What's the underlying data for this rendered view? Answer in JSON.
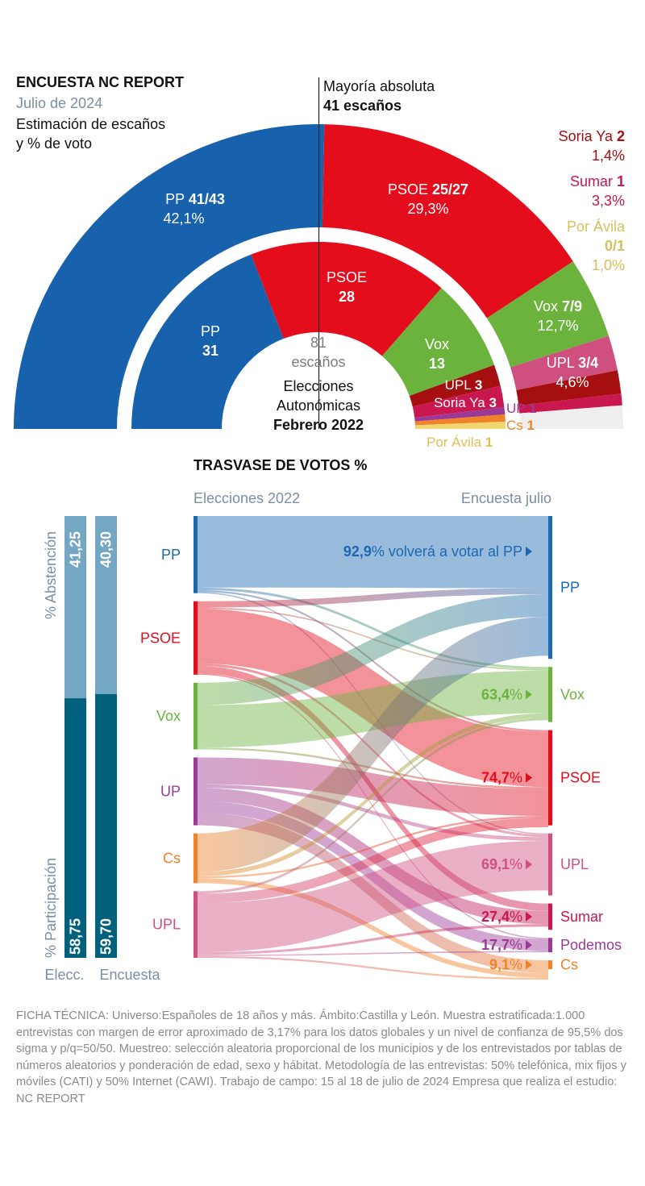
{
  "header": {
    "title": "ENCUESTA NC REPORT",
    "date": "Julio de 2024",
    "subtitle_line1": "Estimación de escaños",
    "subtitle_line2": "y % de voto"
  },
  "majority": {
    "label": "Mayoría absoluta",
    "seats": "41 escaños"
  },
  "center": {
    "total_number": "81",
    "total_label": "escaños",
    "line1": "Elecciones",
    "line2": "Autonómicas",
    "line3": "Febrero 2022"
  },
  "flow_title": "TRASVASE DE VOTOS %",
  "flow_left_header": "Elecciones 2022",
  "flow_right_header": "Encuesta julio",
  "participation": {
    "axis_top": "% Abstención",
    "axis_bottom": "% Participación",
    "elecc_label": "Elecc.",
    "encuesta_label": "Encuesta",
    "elecc_abstencion": "41,25",
    "elecc_participacion": "58,75",
    "encuesta_abstencion": "40,30",
    "encuesta_participacion": "59,70"
  },
  "ficha": "FICHA TÉCNICA: Universo:Españoles de 18 años y más. Ámbito:Castilla y León. Muestra estratificada:1.000 entrevistas con margen de error aproximado de 3,17% para los datos globales y un nivel de confianza de 95,5% dos sigma y p/q=50/50. Muestreo: selección aleatoria proporcional de los municipios y de los entrevistados por tablas de números aleatorios y ponderación de edad, sexo y hábitat. Metodología de las entrevistas: 50% telefónica, mix fijos y móviles (CATI) y 50% Internet (CAWI). Trabajo de campo: 15 al 18 de julio de 2024 Empresa que realiza el estudio: NC REPORT",
  "chart_data": [
    {
      "type": "pie",
      "subtype": "parliament-semicircle",
      "label": "Julio de 2024",
      "total_seats": 81,
      "majority_seats": 41,
      "parties": [
        {
          "name": "PP",
          "seats_text": "41/43",
          "seats_min": 41,
          "seats_max": 43,
          "vote_pct": 42.1,
          "vote_text": "42,1%",
          "color": "#1862ad"
        },
        {
          "name": "PSOE",
          "seats_text": "25/27",
          "seats_min": 25,
          "seats_max": 27,
          "vote_pct": 29.3,
          "vote_text": "29,3%",
          "color": "#e30d1c"
        },
        {
          "name": "Vox",
          "seats_text": "7/9",
          "seats_min": 7,
          "seats_max": 9,
          "vote_pct": 12.7,
          "vote_text": "12,7%",
          "color": "#6cb33e"
        },
        {
          "name": "UPL",
          "seats_text": "3/4",
          "seats_min": 3,
          "seats_max": 4,
          "vote_pct": 4.6,
          "vote_text": "4,6%",
          "color": "#cf4f7f"
        },
        {
          "name": "Soria Ya",
          "seats_text": "2",
          "seats_min": 2,
          "seats_max": 2,
          "vote_pct": 1.4,
          "vote_text": "1,4%",
          "color": "#a50f0f"
        },
        {
          "name": "Sumar",
          "seats_text": "1",
          "seats_min": 1,
          "seats_max": 1,
          "vote_pct": 3.3,
          "vote_text": "3,3%",
          "color": "#c8184f"
        },
        {
          "name": "Por Ávila",
          "seats_text": "0/1",
          "seats_min": 0,
          "seats_max": 1,
          "vote_pct": 1.0,
          "vote_text": "1,0%",
          "color": "#ddc46c"
        }
      ]
    },
    {
      "type": "pie",
      "subtype": "parliament-semicircle",
      "label": "Elecciones Autonómicas Febrero 2022",
      "total_seats": 81,
      "parties": [
        {
          "name": "PP",
          "seats": 31,
          "color": "#1862ad"
        },
        {
          "name": "PSOE",
          "seats": 28,
          "color": "#e30d1c"
        },
        {
          "name": "Vox",
          "seats": 13,
          "color": "#6cb33e"
        },
        {
          "name": "UPL",
          "seats": 3,
          "color": "#a50f0f"
        },
        {
          "name": "Soria Ya",
          "seats": 3,
          "color": "#c8184f"
        },
        {
          "name": "UP",
          "seats": 1,
          "color": "#9b3a96"
        },
        {
          "name": "Cs",
          "seats": 1,
          "color": "#f08228"
        },
        {
          "name": "Por Ávila",
          "seats": 1,
          "color": "#f1d670"
        }
      ]
    },
    {
      "type": "bar",
      "subtype": "stacked",
      "categories": [
        "Elecc.",
        "Encuesta"
      ],
      "series": [
        {
          "name": "% Participación",
          "values": [
            58.75,
            59.7
          ],
          "color": "#01617d"
        },
        {
          "name": "% Abstención",
          "values": [
            41.25,
            40.3
          ],
          "color": "#73a7c3"
        }
      ],
      "ylim": [
        0,
        100
      ]
    },
    {
      "type": "sankey",
      "title": "TRASVASE DE VOTOS %",
      "left_label": "Elecciones 2022",
      "right_label": "Encuesta julio",
      "sources": [
        {
          "name": "PP",
          "color": "#1c69b2",
          "size": 12.4
        },
        {
          "name": "PSOE",
          "color": "#e30d1c",
          "size": 11.8
        },
        {
          "name": "Vox",
          "color": "#6cb33e",
          "size": 10.7
        },
        {
          "name": "UP",
          "color": "#9b3a96",
          "size": 10.9
        },
        {
          "name": "Cs",
          "color": "#f08228",
          "size": 8.0
        },
        {
          "name": "UPL",
          "color": "#cf4f7f",
          "size": 10.7
        }
      ],
      "targets": [
        {
          "name": "PP",
          "color": "#1c69b2",
          "size": 22.8
        },
        {
          "name": "Vox",
          "color": "#6cb33e",
          "size": 8.8
        },
        {
          "name": "PSOE",
          "color": "#e30d1c",
          "size": 15.2
        },
        {
          "name": "UPL",
          "color": "#cf4f7f",
          "size": 9.9
        },
        {
          "name": "Sumar",
          "color": "#c8184f",
          "size": 4.2
        },
        {
          "name": "Podemos",
          "color": "#9b3a96",
          "size": 2.3
        },
        {
          "name": "Cs",
          "color": "#f08228",
          "size": 1.4
        }
      ],
      "retention": [
        {
          "party": "PP",
          "pct": 92.9,
          "text_bold": "92,9",
          "text_rest": "% volverá a votar al PP",
          "color": "#1c69b2"
        },
        {
          "party": "Vox",
          "pct": 63.4,
          "text_bold": "63,4",
          "text_rest": "%",
          "color": "#6cb33e"
        },
        {
          "party": "PSOE",
          "pct": 74.7,
          "text_bold": "74,7",
          "text_rest": "%",
          "color": "#e30d1c"
        },
        {
          "party": "UPL",
          "pct": 69.1,
          "text_bold": "69,1",
          "text_rest": "%",
          "color": "#cf4f7f"
        },
        {
          "party": "Sumar",
          "pct": 27.4,
          "text_bold": "27,4",
          "text_rest": "%",
          "color": "#c8184f"
        },
        {
          "party": "Podemos",
          "pct": 17.7,
          "text_bold": "17,7",
          "text_rest": "%",
          "color": "#9b3a96"
        },
        {
          "party": "Cs",
          "pct": 9.1,
          "text_bold": "9,1",
          "text_rest": "%",
          "color": "#f08228"
        }
      ],
      "flows": [
        {
          "from": "PP",
          "to": "PP",
          "value": 11.5,
          "color": "#1c69b2"
        },
        {
          "from": "PP",
          "to": "Vox",
          "value": 0.4,
          "color": "#1c69b2"
        },
        {
          "from": "PP",
          "to": "PSOE",
          "value": 0.3,
          "color": "#1c69b2"
        },
        {
          "from": "PP",
          "to": "UPL",
          "value": 0.2,
          "color": "#1c69b2"
        },
        {
          "from": "PSOE",
          "to": "PP",
          "value": 1.0,
          "color": "#e30d1c"
        },
        {
          "from": "PSOE",
          "to": "Vox",
          "value": 0.2,
          "color": "#e30d1c"
        },
        {
          "from": "PSOE",
          "to": "PSOE",
          "value": 8.8,
          "color": "#e30d1c"
        },
        {
          "from": "PSOE",
          "to": "UPL",
          "value": 0.4,
          "color": "#e30d1c"
        },
        {
          "from": "PSOE",
          "to": "Sumar",
          "value": 1.2,
          "color": "#e30d1c"
        },
        {
          "from": "PSOE",
          "to": "Podemos",
          "value": 0.2,
          "color": "#e30d1c"
        },
        {
          "from": "Vox",
          "to": "PP",
          "value": 3.6,
          "color": "#6cb33e"
        },
        {
          "from": "Vox",
          "to": "Vox",
          "value": 6.8,
          "color": "#6cb33e"
        },
        {
          "from": "Vox",
          "to": "PSOE",
          "value": 0.3,
          "color": "#6cb33e"
        },
        {
          "from": "UP",
          "to": "PSOE",
          "value": 4.3,
          "color": "#9b3a96"
        },
        {
          "from": "UP",
          "to": "UPL",
          "value": 0.6,
          "color": "#9b3a96"
        },
        {
          "from": "UP",
          "to": "Sumar",
          "value": 2.1,
          "color": "#9b3a96"
        },
        {
          "from": "UP",
          "to": "Podemos",
          "value": 1.9,
          "color": "#9b3a96"
        },
        {
          "from": "UP",
          "to": "Cs",
          "value": 2.0,
          "color": "#9b3a96"
        },
        {
          "from": "Cs",
          "to": "PP",
          "value": 6.2,
          "color": "#f08228"
        },
        {
          "from": "Cs",
          "to": "Vox",
          "value": 0.7,
          "color": "#f08228"
        },
        {
          "from": "Cs",
          "to": "PSOE",
          "value": 0.3,
          "color": "#f08228"
        },
        {
          "from": "Cs",
          "to": "Cs",
          "value": 0.8,
          "color": "#f08228"
        },
        {
          "from": "UPL",
          "to": "Vox",
          "value": 0.4,
          "color": "#cf4f7f"
        },
        {
          "from": "UPL",
          "to": "PSOE",
          "value": 1.5,
          "color": "#cf4f7f"
        },
        {
          "from": "UPL",
          "to": "UPL",
          "value": 7.9,
          "color": "#cf4f7f"
        },
        {
          "from": "UPL",
          "to": "Sumar",
          "value": 0.4,
          "color": "#cf4f7f"
        },
        {
          "from": "UPL",
          "to": "Podemos",
          "value": 0.2,
          "color": "#cf4f7f"
        },
        {
          "from": "UPL",
          "to": "Cs",
          "value": 0.3,
          "color": "#cf4f7f"
        }
      ]
    }
  ]
}
